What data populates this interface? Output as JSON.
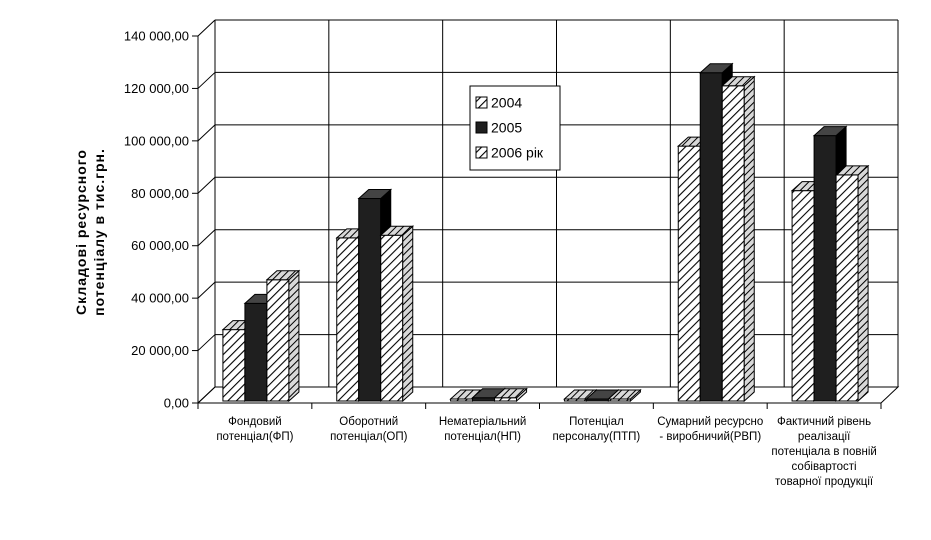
{
  "chart_data": {
    "type": "bar",
    "ylabel": [
      "Складові ресурсного",
      "потенціалу в тис.грн."
    ],
    "ylim": [
      0,
      140000
    ],
    "y_ticks": [
      "0,00",
      "20 000,00",
      "40 000,00",
      "60 000,00",
      "80 000,00",
      "100 000,00",
      "120 000,00",
      "140 000,00"
    ],
    "categories": [
      [
        "Фондовий",
        "потенціал(ФП)"
      ],
      [
        "Оборотний",
        "потенціал(ОП)"
      ],
      [
        "Нематеріальний",
        "потенціал(НП)"
      ],
      [
        "Потенціал",
        "персоналу(ПТП)"
      ],
      [
        "Сумарний ресурсно",
        "- виробничий(РВП)"
      ],
      [
        "Фактичний рівень",
        "реалізації",
        "потенціала в повній",
        "собівартості",
        "товарної продукції"
      ]
    ],
    "series": [
      {
        "name": "2004",
        "pattern": "hatch-light",
        "values": [
          28000,
          63000,
          1500,
          -1000,
          98000,
          81000
        ]
      },
      {
        "name": "2005",
        "pattern": "solid-dark",
        "values": [
          38000,
          78000,
          2000,
          1000,
          126000,
          102000
        ]
      },
      {
        "name": "2006 рік",
        "pattern": "hatch-light",
        "values": [
          47000,
          64000,
          2000,
          1000,
          121000,
          87000
        ]
      }
    ],
    "grid": true,
    "legend_position": "upper-middle",
    "colors": {
      "dark": "#1f1f1f",
      "hatch": "#000000",
      "background": "#ffffff",
      "grid": "#000000"
    }
  }
}
